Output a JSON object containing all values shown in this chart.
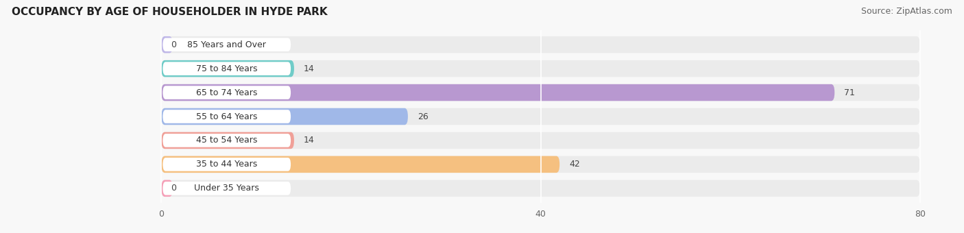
{
  "title": "OCCUPANCY BY AGE OF HOUSEHOLDER IN HYDE PARK",
  "source": "Source: ZipAtlas.com",
  "categories": [
    "Under 35 Years",
    "35 to 44 Years",
    "45 to 54 Years",
    "55 to 64 Years",
    "65 to 74 Years",
    "75 to 84 Years",
    "85 Years and Over"
  ],
  "values": [
    0,
    42,
    14,
    26,
    71,
    14,
    0
  ],
  "bar_colors": [
    "#f5a0b8",
    "#f5c080",
    "#f0a098",
    "#a0b8e8",
    "#b898d0",
    "#70ccc8",
    "#c0b8e8"
  ],
  "xlim_data": [
    0,
    80
  ],
  "xticks": [
    0,
    40,
    80
  ],
  "bar_bg_color": "#ebebeb",
  "label_pill_color": "#ffffff",
  "title_fontsize": 11,
  "source_fontsize": 9,
  "label_fontsize": 9,
  "value_fontsize": 9,
  "tick_fontsize": 9,
  "figsize": [
    14.06,
    3.4
  ],
  "dpi": 100
}
